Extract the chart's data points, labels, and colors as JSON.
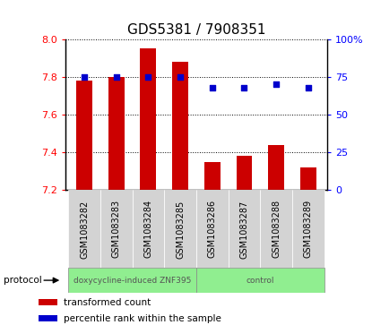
{
  "title": "GDS5381 / 7908351",
  "samples": [
    "GSM1083282",
    "GSM1083283",
    "GSM1083284",
    "GSM1083285",
    "GSM1083286",
    "GSM1083287",
    "GSM1083288",
    "GSM1083289"
  ],
  "transformed_counts": [
    7.78,
    7.8,
    7.95,
    7.88,
    7.35,
    7.38,
    7.44,
    7.32
  ],
  "percentile_ranks": [
    75,
    75,
    75,
    75,
    68,
    68,
    70,
    68
  ],
  "ylim_left": [
    7.2,
    8.0
  ],
  "ylim_right": [
    0,
    100
  ],
  "yticks_left": [
    7.2,
    7.4,
    7.6,
    7.8,
    8.0
  ],
  "yticks_right": [
    0,
    25,
    50,
    75,
    100
  ],
  "bar_color": "#cc0000",
  "dot_color": "#0000cc",
  "bar_bottom": 7.2,
  "protocol_groups": [
    {
      "label": "doxycycline-induced ZNF395",
      "n": 4,
      "color": "#90ee90"
    },
    {
      "label": "control",
      "n": 4,
      "color": "#90ee90"
    }
  ],
  "legend_bar_label": "transformed count",
  "legend_dot_label": "percentile rank within the sample",
  "protocol_label": "protocol",
  "title_fontsize": 11,
  "axis_fontsize": 8,
  "tick_label_fontsize": 7,
  "legend_fontsize": 7.5,
  "proto_fontsize": 6.5,
  "bar_width": 0.5
}
